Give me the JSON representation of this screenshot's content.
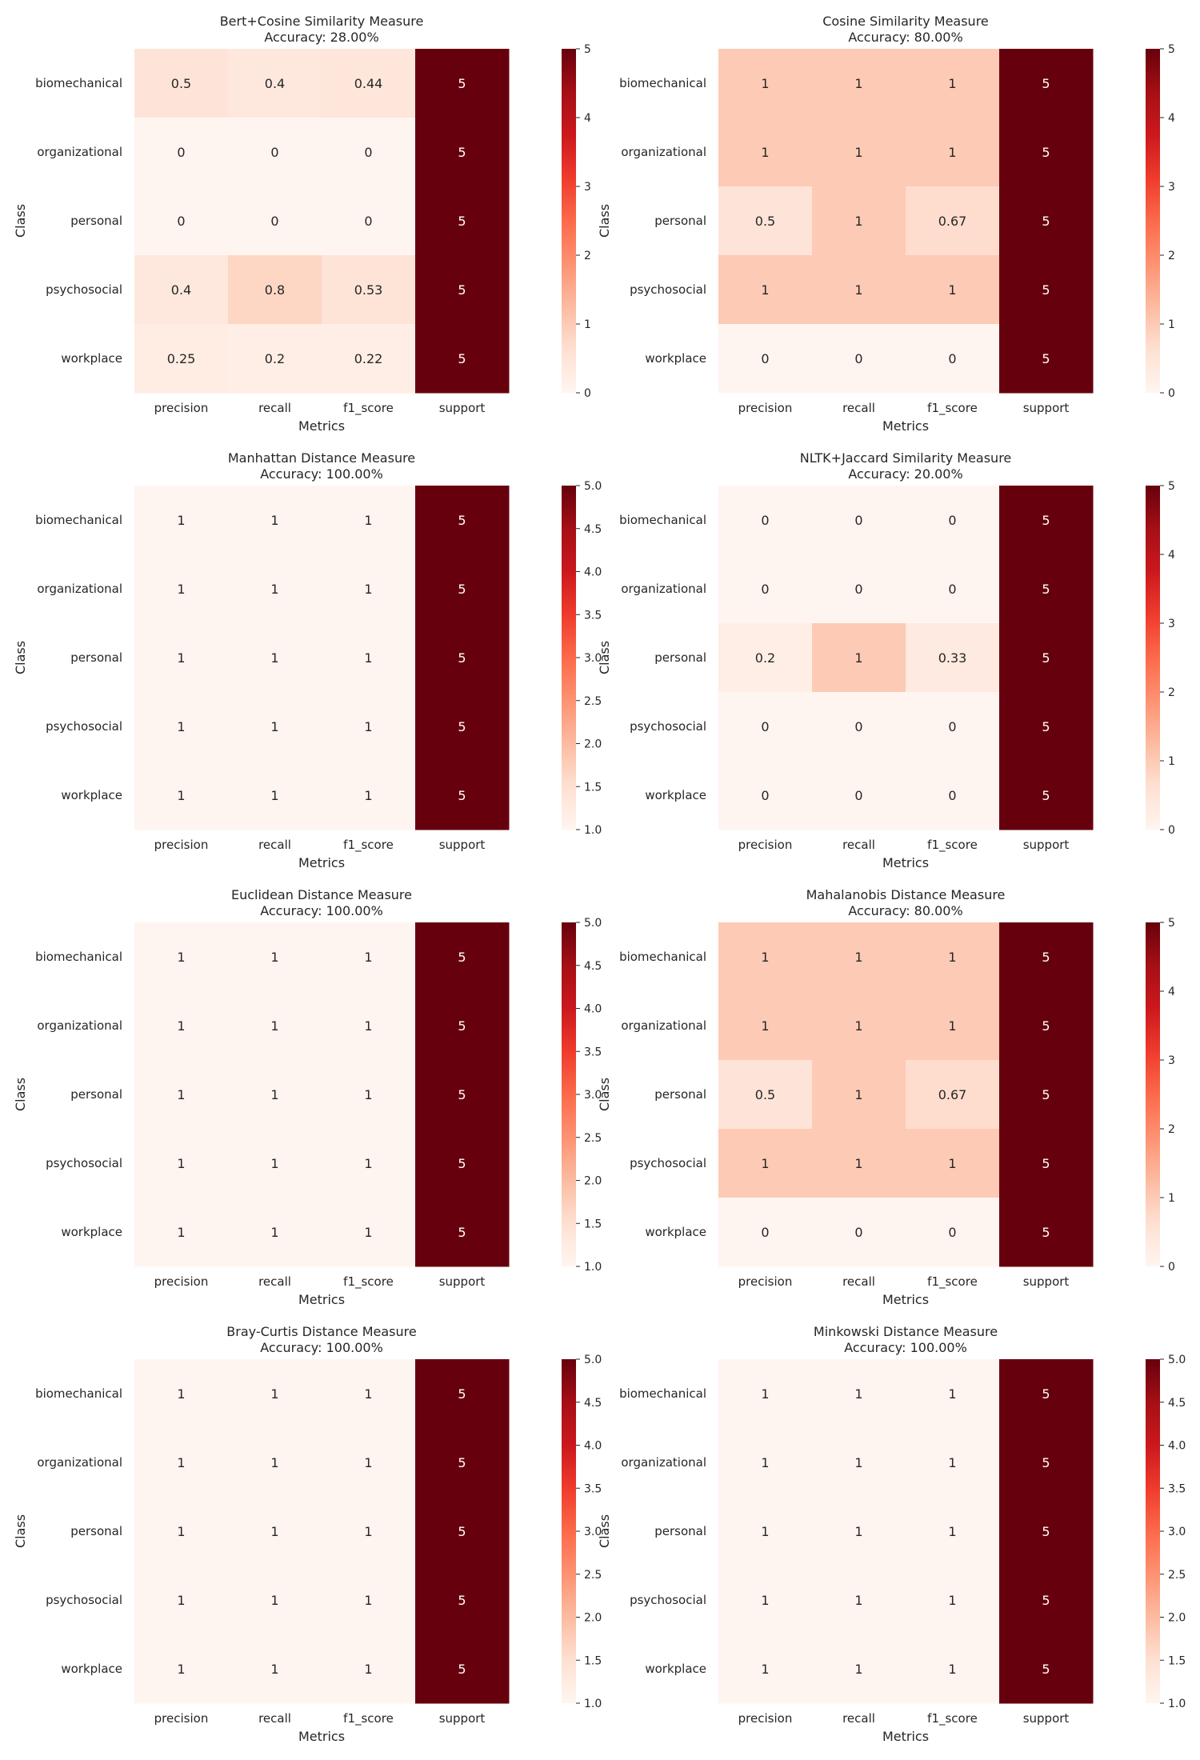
{
  "chart_data": [
    {
      "type": "heatmap",
      "title": "Bert+Cosine Similarity Measure",
      "subtitle": "Accuracy: 28.00%",
      "xlabel": "Metrics",
      "ylabel": "Class",
      "x": [
        "precision",
        "recall",
        "f1_score",
        "support"
      ],
      "y": [
        "biomechanical",
        "organizational",
        "personal",
        "psychosocial",
        "workplace"
      ],
      "values": [
        [
          0.5,
          0.4,
          0.44,
          5
        ],
        [
          0,
          0,
          0,
          5
        ],
        [
          0,
          0,
          0,
          5
        ],
        [
          0.4,
          0.8,
          0.53,
          5
        ],
        [
          0.25,
          0.2,
          0.22,
          5
        ]
      ],
      "colorbar_ticks": [
        "0",
        "1",
        "2",
        "3",
        "4",
        "5"
      ],
      "vmin": 0,
      "vmax": 5,
      "colormap": "Reds"
    },
    {
      "type": "heatmap",
      "title": "Cosine Similarity Measure",
      "subtitle": "Accuracy: 80.00%",
      "xlabel": "Metrics",
      "ylabel": "Class",
      "x": [
        "precision",
        "recall",
        "f1_score",
        "support"
      ],
      "y": [
        "biomechanical",
        "organizational",
        "personal",
        "psychosocial",
        "workplace"
      ],
      "values": [
        [
          1,
          1,
          1,
          5
        ],
        [
          1,
          1,
          1,
          5
        ],
        [
          0.5,
          1,
          0.67,
          5
        ],
        [
          1,
          1,
          1,
          5
        ],
        [
          0,
          0,
          0,
          5
        ]
      ],
      "colorbar_ticks": [
        "0",
        "1",
        "2",
        "3",
        "4",
        "5"
      ],
      "vmin": 0,
      "vmax": 5,
      "colormap": "Reds"
    },
    {
      "type": "heatmap",
      "title": "Manhattan Distance Measure",
      "subtitle": "Accuracy: 100.00%",
      "xlabel": "Metrics",
      "ylabel": "Class",
      "x": [
        "precision",
        "recall",
        "f1_score",
        "support"
      ],
      "y": [
        "biomechanical",
        "organizational",
        "personal",
        "psychosocial",
        "workplace"
      ],
      "values": [
        [
          1,
          1,
          1,
          5
        ],
        [
          1,
          1,
          1,
          5
        ],
        [
          1,
          1,
          1,
          5
        ],
        [
          1,
          1,
          1,
          5
        ],
        [
          1,
          1,
          1,
          5
        ]
      ],
      "colorbar_ticks": [
        "1.0",
        "1.5",
        "2.0",
        "2.5",
        "3.0",
        "3.5",
        "4.0",
        "4.5",
        "5.0"
      ],
      "vmin": 1,
      "vmax": 5,
      "colormap": "Reds"
    },
    {
      "type": "heatmap",
      "title": "NLTK+Jaccard Similarity Measure",
      "subtitle": "Accuracy: 20.00%",
      "xlabel": "Metrics",
      "ylabel": "Class",
      "x": [
        "precision",
        "recall",
        "f1_score",
        "support"
      ],
      "y": [
        "biomechanical",
        "organizational",
        "personal",
        "psychosocial",
        "workplace"
      ],
      "values": [
        [
          0,
          0,
          0,
          5
        ],
        [
          0,
          0,
          0,
          5
        ],
        [
          0.2,
          1,
          0.33,
          5
        ],
        [
          0,
          0,
          0,
          5
        ],
        [
          0,
          0,
          0,
          5
        ]
      ],
      "colorbar_ticks": [
        "0",
        "1",
        "2",
        "3",
        "4",
        "5"
      ],
      "vmin": 0,
      "vmax": 5,
      "colormap": "Reds"
    },
    {
      "type": "heatmap",
      "title": "Euclidean Distance Measure",
      "subtitle": "Accuracy: 100.00%",
      "xlabel": "Metrics",
      "ylabel": "Class",
      "x": [
        "precision",
        "recall",
        "f1_score",
        "support"
      ],
      "y": [
        "biomechanical",
        "organizational",
        "personal",
        "psychosocial",
        "workplace"
      ],
      "values": [
        [
          1,
          1,
          1,
          5
        ],
        [
          1,
          1,
          1,
          5
        ],
        [
          1,
          1,
          1,
          5
        ],
        [
          1,
          1,
          1,
          5
        ],
        [
          1,
          1,
          1,
          5
        ]
      ],
      "colorbar_ticks": [
        "1.0",
        "1.5",
        "2.0",
        "2.5",
        "3.0",
        "3.5",
        "4.0",
        "4.5",
        "5.0"
      ],
      "vmin": 1,
      "vmax": 5,
      "colormap": "Reds"
    },
    {
      "type": "heatmap",
      "title": "Mahalanobis Distance Measure",
      "subtitle": "Accuracy: 80.00%",
      "xlabel": "Metrics",
      "ylabel": "Class",
      "x": [
        "precision",
        "recall",
        "f1_score",
        "support"
      ],
      "y": [
        "biomechanical",
        "organizational",
        "personal",
        "psychosocial",
        "workplace"
      ],
      "values": [
        [
          1,
          1,
          1,
          5
        ],
        [
          1,
          1,
          1,
          5
        ],
        [
          0.5,
          1,
          0.67,
          5
        ],
        [
          1,
          1,
          1,
          5
        ],
        [
          0,
          0,
          0,
          5
        ]
      ],
      "colorbar_ticks": [
        "0",
        "1",
        "2",
        "3",
        "4",
        "5"
      ],
      "vmin": 0,
      "vmax": 5,
      "colormap": "Reds"
    },
    {
      "type": "heatmap",
      "title": "Bray-Curtis Distance Measure",
      "subtitle": "Accuracy: 100.00%",
      "xlabel": "Metrics",
      "ylabel": "Class",
      "x": [
        "precision",
        "recall",
        "f1_score",
        "support"
      ],
      "y": [
        "biomechanical",
        "organizational",
        "personal",
        "psychosocial",
        "workplace"
      ],
      "values": [
        [
          1,
          1,
          1,
          5
        ],
        [
          1,
          1,
          1,
          5
        ],
        [
          1,
          1,
          1,
          5
        ],
        [
          1,
          1,
          1,
          5
        ],
        [
          1,
          1,
          1,
          5
        ]
      ],
      "colorbar_ticks": [
        "1.0",
        "1.5",
        "2.0",
        "2.5",
        "3.0",
        "3.5",
        "4.0",
        "4.5",
        "5.0"
      ],
      "vmin": 1,
      "vmax": 5,
      "colormap": "Reds"
    },
    {
      "type": "heatmap",
      "title": "Minkowski Distance Measure",
      "subtitle": "Accuracy: 100.00%",
      "xlabel": "Metrics",
      "ylabel": "Class",
      "x": [
        "precision",
        "recall",
        "f1_score",
        "support"
      ],
      "y": [
        "biomechanical",
        "organizational",
        "personal",
        "psychosocial",
        "workplace"
      ],
      "values": [
        [
          1,
          1,
          1,
          5
        ],
        [
          1,
          1,
          1,
          5
        ],
        [
          1,
          1,
          1,
          5
        ],
        [
          1,
          1,
          1,
          5
        ],
        [
          1,
          1,
          1,
          5
        ]
      ],
      "colorbar_ticks": [
        "1.0",
        "1.5",
        "2.0",
        "2.5",
        "3.0",
        "3.5",
        "4.0",
        "4.5",
        "5.0"
      ],
      "vmin": 1,
      "vmax": 5,
      "colormap": "Reds"
    }
  ]
}
